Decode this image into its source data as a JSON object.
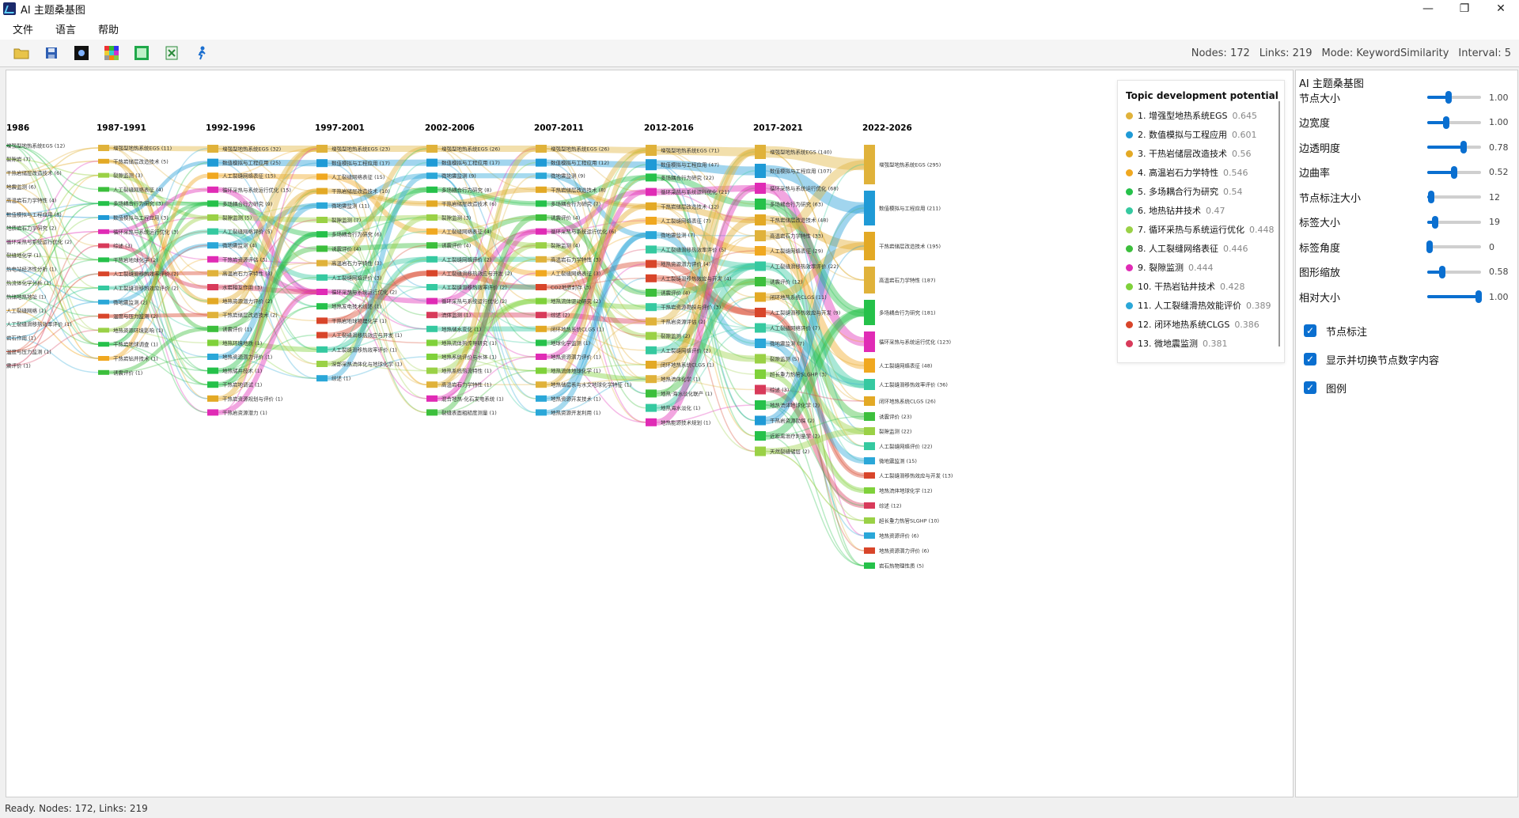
{
  "window": {
    "title": "AI 主题桑基图"
  },
  "menu": [
    "文件",
    "语言",
    "帮助"
  ],
  "toolbar": {
    "icons": [
      "open-folder-icon",
      "save-icon",
      "dark-theme-icon",
      "color-grid-icon",
      "image-export-icon",
      "excel-export-icon",
      "run-figure-icon"
    ],
    "nodes_text": "Nodes: 172",
    "links_text": "Links: 219",
    "mode_text": "Mode: KeywordSimilarity",
    "interval_text": "Interval: 5"
  },
  "periods": [
    "1986",
    "1987-1991",
    "1992-1996",
    "1997-2001",
    "2002-2006",
    "2007-2011",
    "2012-2016",
    "2017-2021",
    "2022-2026"
  ],
  "columns": [
    [
      [
        "增强型地热系统EGS (12)",
        4,
        2
      ],
      [
        "裂隙岩 (7)",
        6,
        1.5
      ],
      [
        "干热岩储层改造技术 (6)",
        2,
        1.5
      ],
      [
        "地震监测 (6)",
        0,
        1.5
      ],
      [
        "高温岩石力学特性 (4)",
        3,
        1.2
      ],
      [
        "数值模拟与工程应用 (8)",
        1,
        1.5
      ],
      [
        "地质岩石力学研究 (2)",
        4,
        1
      ],
      [
        "循环采热与系统运行优化 (2)",
        8,
        1
      ],
      [
        "裂缝地化学 (1)",
        6,
        1
      ],
      [
        "热电站经济性分析 (1)",
        10,
        1
      ],
      [
        "热流体化学分析 (1)",
        9,
        1
      ],
      [
        "热储地热地址 (1)",
        4,
        1
      ],
      [
        "人工裂缝网络 (1)",
        3,
        1
      ],
      [
        "人工裂缝滑移热效率评价 (1)",
        5,
        1
      ],
      [
        "岩石作用 (1)",
        10,
        1
      ],
      [
        "温度与压力监测 (1)",
        11,
        1
      ],
      [
        "震评价 (1)",
        12,
        1
      ]
    ],
    [
      [
        "增强型地热系统EGS (11)",
        0,
        8
      ],
      [
        "干热岩储层改造技术 (5)",
        2,
        6
      ],
      [
        "裂隙监测 (3)",
        6,
        6
      ],
      [
        "人工裂缝网络表征 (4)",
        7,
        6
      ],
      [
        "多场耦合行为研究 (3)",
        4,
        6
      ],
      [
        "数值模拟与工程应用 (3)",
        1,
        6
      ],
      [
        "循环采热与系统运行优化 (3)",
        8,
        6
      ],
      [
        "综述 (3)",
        12,
        6
      ],
      [
        "干热岩地球化学 (2)",
        4,
        6
      ],
      [
        "人工裂缝滑移热效率评价 (2)",
        11,
        6
      ],
      [
        "人工裂缝滑移热效应评价 (2)",
        5,
        6
      ],
      [
        "微地震监测 (2)",
        10,
        6
      ],
      [
        "温度与压力监测 (2)",
        11,
        6
      ],
      [
        "地热资源环境影响 (1)",
        6,
        6
      ],
      [
        "干热岩地球调查 (1)",
        4,
        6
      ],
      [
        "干热岩钻井技术 (1)",
        3,
        6
      ],
      [
        "诱震评价 (1)",
        7,
        6
      ]
    ],
    [
      [
        "增强型地热系统EGS (32)",
        0,
        10
      ],
      [
        "数值模拟与工程应用 (25)",
        1,
        10
      ],
      [
        "人工裂缝网络表征 (15)",
        3,
        8
      ],
      [
        "循环采热与系统运行优化 (15)",
        8,
        8
      ],
      [
        "多场耦合行为研究 (9)",
        4,
        8
      ],
      [
        "裂隙监测 (5)",
        6,
        8
      ],
      [
        "人工裂缝网络评价 (5)",
        5,
        8
      ],
      [
        "微地震监测 (4)",
        10,
        8
      ],
      [
        "干热岩资源评估 (3)",
        8,
        8
      ],
      [
        "高温岩石力学特性 (3)",
        0,
        8
      ],
      [
        "水岩相互作用 (3)",
        12,
        8
      ],
      [
        "地热资源潜力评价 (2)",
        2,
        8
      ],
      [
        "干热岩储层改造技术 (2)",
        0,
        8
      ],
      [
        "诱震评价 (1)",
        7,
        8
      ],
      [
        "地热环境地质 (1)",
        9,
        8
      ],
      [
        "地热资源潜力评价 (1)",
        10,
        8
      ],
      [
        "地热储井技术 (1)",
        4,
        8
      ],
      [
        "干热岩地调试 (1)",
        4,
        8
      ],
      [
        "干热岩资源规划与评价 (1)",
        2,
        8
      ],
      [
        "干热岩资源潜力 (1)",
        8,
        8
      ]
    ],
    [
      [
        "增强型地热系统EGS (23)",
        0,
        10
      ],
      [
        "数值模拟与工程应用 (17)",
        1,
        10
      ],
      [
        "人工裂缝网络表征 (15)",
        3,
        8
      ],
      [
        "干热岩储层改造技术 (10)",
        2,
        8
      ],
      [
        "微地震监测 (11)",
        10,
        8
      ],
      [
        "裂隙监测 (7)",
        6,
        8
      ],
      [
        "多场耦合行为研究 (6)",
        4,
        8
      ],
      [
        "诱震评价 (4)",
        7,
        8
      ],
      [
        "高温岩石力学特性 (3)",
        0,
        8
      ],
      [
        "人工裂缝网络评价 (3)",
        5,
        8
      ],
      [
        "循环采热与系统运行优化 (2)",
        8,
        8
      ],
      [
        "地热发电技术综述 (1)",
        4,
        8
      ],
      [
        "干热岩地球物理化学 (1)",
        11,
        8
      ],
      [
        "人工裂缝滑移热效应与开发 (1)",
        11,
        8
      ],
      [
        "人工裂缝滑移热效率评价 (1)",
        5,
        8
      ],
      [
        "深部采热流体化与地球化学 (1)",
        6,
        8
      ],
      [
        "综述 (1)",
        10,
        8
      ]
    ],
    [
      [
        "增强型地热系统EGS (26)",
        0,
        10
      ],
      [
        "数值模拟与工程应用 (17)",
        1,
        10
      ],
      [
        "微地震监测 (9)",
        10,
        8
      ],
      [
        "多场耦合行为研究 (8)",
        4,
        8
      ],
      [
        "干热岩储层改造技术 (6)",
        2,
        8
      ],
      [
        "裂隙监测 (3)",
        6,
        8
      ],
      [
        "人工裂缝网络表征 (4)",
        3,
        8
      ],
      [
        "诱震评价 (4)",
        7,
        8
      ],
      [
        "人工裂缝网络评价 (2)",
        5,
        8
      ],
      [
        "人工裂缝滑移热效应与开发 (2)",
        11,
        8
      ],
      [
        "人工裂缝滑移热效率评价 (2)",
        5,
        8
      ],
      [
        "循环采热与系统运行优化 (2)",
        8,
        8
      ],
      [
        "流体监测 (1)",
        12,
        8
      ],
      [
        "地热储水变化 (1)",
        5,
        8
      ],
      [
        "地热流体热传导研究 (1)",
        9,
        8
      ],
      [
        "地热系统评价与水体 (1)",
        9,
        8
      ],
      [
        "地热系统热流特性 (1)",
        6,
        8
      ],
      [
        "高温岩石力学特性 (1)",
        0,
        8
      ],
      [
        "混合地热-化石发电系统 (1)",
        8,
        8
      ],
      [
        "裂缝表面粗糙度测量 (1)",
        7,
        8
      ]
    ],
    [
      [
        "增强型地热系统EGS (26)",
        0,
        10
      ],
      [
        "数值模拟与工程应用 (12)",
        1,
        10
      ],
      [
        "微地震监测 (9)",
        10,
        8
      ],
      [
        "干热岩储层改造技术 (8)",
        2,
        8
      ],
      [
        "多场耦合行为研究 (7)",
        4,
        8
      ],
      [
        "诱震评价 (4)",
        7,
        8
      ],
      [
        "循环采热与系统运行优化 (6)",
        8,
        8
      ],
      [
        "裂隙监测 (4)",
        6,
        8
      ],
      [
        "高温岩石力学特性 (3)",
        0,
        8
      ],
      [
        "人工裂缝网络表征 (3)",
        3,
        8
      ],
      [
        "CO2地质封存 (3)",
        11,
        8
      ],
      [
        "地热流体驱动研究 (2)",
        9,
        8
      ],
      [
        "综述 (2)",
        12,
        8
      ],
      [
        "闭环地热系统CLGS (1)",
        2,
        8
      ],
      [
        "地球化学监测 (1)",
        4,
        8
      ],
      [
        "地热资源潜力评价 (1)",
        8,
        8
      ],
      [
        "地热流体地球化学 (1)",
        9,
        8
      ],
      [
        "地热储层系与水文地球化学特征 (1)",
        0,
        8
      ],
      [
        "地热资源开发技术 (1)",
        10,
        8
      ],
      [
        "地热资源开发利用 (1)",
        10,
        8
      ]
    ],
    [
      [
        "增强型地热系统EGS (71)",
        0,
        14
      ],
      [
        "数值模拟与工程应用 (47)",
        1,
        14
      ],
      [
        "多场耦合行为研究 (22)",
        4,
        10
      ],
      [
        "循环采热与系统运行优化 (21)",
        8,
        10
      ],
      [
        "干热岩储层改造技术 (12)",
        2,
        10
      ],
      [
        "人工裂缝网络表征 (7)",
        3,
        10
      ],
      [
        "微地震监测 (7)",
        10,
        10
      ],
      [
        "人工裂缝滑移热效率评价 (5)",
        5,
        10
      ],
      [
        "地热资源潜力评价 (4)",
        11,
        10
      ],
      [
        "人工裂缝滑移热效应与开发 (4)",
        11,
        10
      ],
      [
        "诱震评价 (4)",
        7,
        10
      ],
      [
        "干热岩资源勘探与评价 (3)",
        5,
        10
      ],
      [
        "干热岩资源评估 (2)",
        0,
        10
      ],
      [
        "裂隙监测 (2)",
        6,
        10
      ],
      [
        "人工裂缝网络评价 (2)",
        5,
        10
      ],
      [
        "闭环地热系统CLGS (1)",
        2,
        10
      ],
      [
        "地热流体化学 (1)",
        0,
        10
      ],
      [
        "地热·海水淡化联产 (1)",
        7,
        10
      ],
      [
        "地热海水淡化 (1)",
        5,
        10
      ],
      [
        "地热能源技术规划 (1)",
        8,
        10
      ]
    ],
    [
      [
        "增强型地热系统EGS (140)",
        0,
        18
      ],
      [
        "数值模拟与工程应用 (107)",
        1,
        18
      ],
      [
        "循环采热与系统运行优化 (68)",
        8,
        14
      ],
      [
        "多场耦合行为研究 (63)",
        4,
        14
      ],
      [
        "干热岩储层改造技术 (48)",
        2,
        14
      ],
      [
        "高温岩石力学特性 (33)",
        0,
        14
      ],
      [
        "人工裂缝网络表征 (29)",
        3,
        12
      ],
      [
        "人工裂缝滑移热效率评价 (22)",
        5,
        12
      ],
      [
        "诱震评价 (12)",
        7,
        12
      ],
      [
        "闭环地热系统CLGS (11)",
        2,
        12
      ],
      [
        "人工裂缝滑移热效应与开发 (9)",
        11,
        12
      ],
      [
        "人工裂缝网络评价 (7)",
        5,
        12
      ],
      [
        "微地震监测 (7)",
        10,
        12
      ],
      [
        "裂隙监测 (5)",
        6,
        12
      ],
      [
        "超长重力热管SLGHP (3)",
        9,
        12
      ],
      [
        "综述 (3)",
        12,
        12
      ],
      [
        "地热流体地球化学 (2)",
        4,
        12
      ],
      [
        "干热岩资源勘探 (2)",
        1,
        12
      ],
      [
        "近距离治疗判量学 (2)",
        4,
        12
      ],
      [
        "天然裂缝储层 (2)",
        6,
        12
      ]
    ],
    [
      [
        "增强型地热系统EGS (295)",
        0,
        50
      ],
      [
        "数值模拟与工程应用 (211)",
        1,
        44
      ],
      [
        "干热岩储层改造技术 (195)",
        2,
        36
      ],
      [
        "高温岩石力学特性 (187)",
        0,
        34
      ],
      [
        "多场耦合行为研究 (181)",
        4,
        32
      ],
      [
        "循环采热与系统运行优化 (123)",
        8,
        26
      ],
      [
        "人工裂缝网络表征 (48)",
        3,
        18
      ],
      [
        "人工裂缝滑移热效率评价 (36)",
        5,
        14
      ],
      [
        "闭环地热系统CLGS (26)",
        2,
        12
      ],
      [
        "诱震评价 (23)",
        7,
        11
      ],
      [
        "裂隙监测 (22)",
        6,
        10
      ],
      [
        "人工裂缝网络评价 (22)",
        5,
        10
      ],
      [
        "微地震监测 (15)",
        10,
        9
      ],
      [
        "人工裂缝滑移热效应与开发 (13)",
        11,
        8
      ],
      [
        "地热流体地球化学 (12)",
        9,
        8
      ],
      [
        "综述 (12)",
        12,
        8
      ],
      [
        "超长重力热管SLGHP (10)",
        6,
        8
      ],
      [
        "地热资源评价 (6)",
        10,
        8
      ],
      [
        "地热资源潜力评价 (6)",
        11,
        8
      ],
      [
        "岩石热物理性质 (5)",
        4,
        8
      ]
    ]
  ],
  "colors": [
    "#e0b23a",
    "#1f9ad6",
    "#e3a925",
    "#f0a820",
    "#25c14a",
    "#35c9a0",
    "#9ad146",
    "#3cbf3c",
    "#e02bb5",
    "#7fd13a",
    "#2aa7d8",
    "#d8452a",
    "#d83a5a",
    "#2020c8",
    "#8a4fd6"
  ],
  "legend": {
    "title": "Topic development potential",
    "items": [
      {
        "label": "1. 增强型地热系统EGS",
        "value": "0.645",
        "color": "#e0b23a"
      },
      {
        "label": "2. 数值模拟与工程应用",
        "value": "0.601",
        "color": "#1f9ad6"
      },
      {
        "label": "3. 干热岩储层改造技术",
        "value": "0.56",
        "color": "#e3a925"
      },
      {
        "label": "4. 高温岩石力学特性",
        "value": "0.546",
        "color": "#f0a820"
      },
      {
        "label": "5. 多场耦合行为研究",
        "value": "0.54",
        "color": "#25c14a"
      },
      {
        "label": "6. 地热钻井技术",
        "value": "0.47",
        "color": "#35c9a0"
      },
      {
        "label": "7. 循环采热与系统运行优化",
        "value": "0.448",
        "color": "#9ad146"
      },
      {
        "label": "8. 人工裂缝网络表征",
        "value": "0.446",
        "color": "#3cbf3c"
      },
      {
        "label": "9. 裂隙监测",
        "value": "0.444",
        "color": "#e02bb5"
      },
      {
        "label": "10. 干热岩钻井技术",
        "value": "0.428",
        "color": "#7fd13a"
      },
      {
        "label": "11. 人工裂缝滑热效能评价",
        "value": "0.389",
        "color": "#2aa7d8"
      },
      {
        "label": "12. 闭环地热系统CLGS",
        "value": "0.386",
        "color": "#d8452a"
      },
      {
        "label": "13. 微地震监测",
        "value": "0.381",
        "color": "#d83a5a"
      }
    ]
  },
  "panel": {
    "title": "AI 主题桑基图",
    "sliders": [
      {
        "label": "节点大小",
        "value": "1.00",
        "level": 0.4
      },
      {
        "label": "边宽度",
        "value": "1.00",
        "level": 0.35
      },
      {
        "label": "边透明度",
        "value": "0.78",
        "level": 0.68
      },
      {
        "label": "边曲率",
        "value": "0.52",
        "level": 0.5
      },
      {
        "label": "节点标注大小",
        "value": "12",
        "level": 0.08
      },
      {
        "label": "标签大小",
        "value": "19",
        "level": 0.15
      },
      {
        "label": "标签角度",
        "value": "0",
        "level": 0.05
      },
      {
        "label": "图形缩放",
        "value": "0.58",
        "level": 0.28
      },
      {
        "label": "相对大小",
        "value": "1.00",
        "level": 0.95
      }
    ],
    "checks": [
      {
        "label": "节点标注",
        "checked": true
      },
      {
        "label": "显示并切换节点数字内容",
        "checked": true
      },
      {
        "label": "图例",
        "checked": true
      }
    ]
  },
  "status": "Ready. Nodes: 172, Links: 219"
}
